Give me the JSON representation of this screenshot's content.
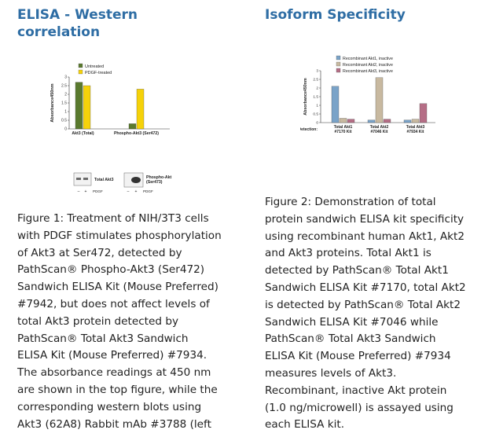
{
  "left": {
    "title_lines": [
      "ELISA - Western",
      "correlation"
    ],
    "caption_lines": [
      "Figure 1: Treatment of NIH/3T3 cells",
      "with PDGF stimulates phosphorylation",
      "of Akt3 at Ser472, detected by",
      "PathScan® Phospho-Akt3 (Ser472)",
      "Sandwich ELISA Kit (Mouse Preferred)",
      "#7942, but does not affect levels of",
      "total Akt3 protein detected by",
      "PathScan® Total Akt3 Sandwich",
      "ELISA Kit (Mouse Preferred) #7934.",
      "The absorbance readings at 450 nm",
      "are shown in the top figure, while the",
      "corresponding western blots using",
      "Akt3 (62A8) Rabbit mAb #3788 (left"
    ],
    "blot": {
      "labels": [
        "Total Akt3",
        "Phospho-Akt\n(Ser473)"
      ],
      "lane_labels": [
        "–",
        "+",
        "PDGF"
      ]
    }
  },
  "right": {
    "title": "Isoform Specificity",
    "caption_lines": [
      "Figure 2: Demonstration of total",
      "protein sandwich ELISA kit specificity",
      "using recombinant human Akt1, Akt2",
      "and Akt3 proteins. Total Akt1 is",
      "detected by PathScan® Total Akt1",
      "Sandwich ELISA Kit #7170, total Akt2",
      "is detected by PathScan® Total Akt2",
      "Sandwich ELISA Kit #7046 while",
      "PathScan® Total Akt3 Sandwich",
      "ELISA Kit (Mouse Preferred) #7934",
      "measures levels of Akt3.",
      "Recombinant, inactive Akt protein",
      "(1.0 ng/microwell) is assayed using",
      "each ELISA kit."
    ]
  },
  "chart_data": [
    {
      "type": "bar",
      "title": "",
      "ylabel": "Absorbance450nm",
      "categories": [
        "Akt3 (Total)",
        "Phospho-Akt3 (Ser472)"
      ],
      "series": [
        {
          "name": "Untreated",
          "values": [
            2.7,
            0.3
          ],
          "color": "#5a7a2e"
        },
        {
          "name": "PDGF-treated",
          "values": [
            2.5,
            2.3
          ],
          "color": "#f5d20a"
        }
      ],
      "ylim": [
        0,
        3
      ],
      "yticks": [
        "0",
        "0.5",
        "1",
        "1.5",
        "2",
        "2.5",
        "3"
      ],
      "legend": "top"
    },
    {
      "type": "bar",
      "title": "",
      "ylabel": "Absorbance450nm",
      "xlabel": "Detection:",
      "categories": [
        "Total Akt1\n#7170 Kit",
        "Total Akt2\n#7046 Kit",
        "Total Akt3\n#7934 Kit"
      ],
      "series": [
        {
          "name": "Recombinant Akt1, inactive",
          "values": [
            2.1,
            0.15,
            0.15
          ],
          "color": "#7aa3c8"
        },
        {
          "name": "Recombinant Akt2, inactive",
          "values": [
            0.25,
            2.6,
            0.2
          ],
          "color": "#c8b9a0"
        },
        {
          "name": "Recombinant Akt3, inactive",
          "values": [
            0.2,
            0.2,
            1.1
          ],
          "color": "#b56e86"
        }
      ],
      "ylim": [
        0,
        3
      ],
      "yticks": [
        "0",
        "0.5",
        "1",
        "1.5",
        "2",
        "2.5",
        "3"
      ],
      "legend": "top"
    }
  ]
}
